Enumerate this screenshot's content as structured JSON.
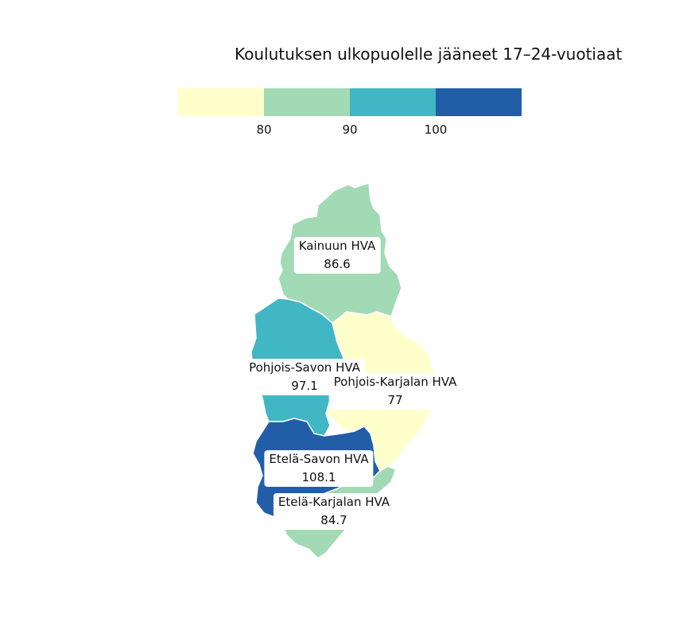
{
  "title": "Koulutuksen ulkopuolelle jääneet 17–24-vuotiaat",
  "legend": {
    "colors": [
      "#ffffcc",
      "#a1dab4",
      "#41b6c4",
      "#225ea8"
    ],
    "ticks": [
      "80",
      "90",
      "100"
    ]
  },
  "regions": [
    {
      "name": "Kainuun HVA",
      "value": "86.6",
      "color": "#a1dab4"
    },
    {
      "name": "Pohjois-Savon HVA",
      "value": "97.1",
      "color": "#41b6c4"
    },
    {
      "name": "Pohjois-Karjalan HVA",
      "value": "77",
      "color": "#ffffcc"
    },
    {
      "name": "Etelä-Savon HVA",
      "value": "108.1",
      "color": "#225ea8"
    },
    {
      "name": "Etelä-Karjalan HVA",
      "value": "84.7",
      "color": "#a1dab4"
    }
  ]
}
